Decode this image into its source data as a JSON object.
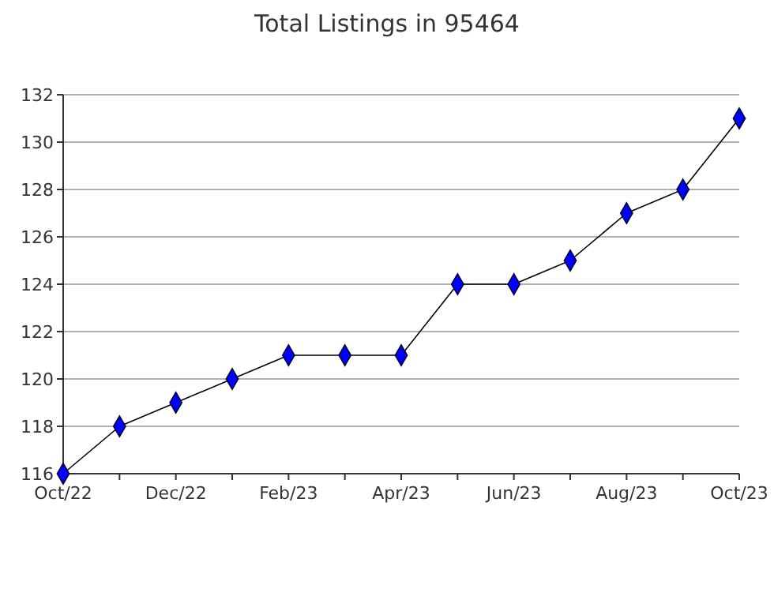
{
  "chart_data": {
    "type": "line",
    "title": "Total Listings in 95464",
    "categories": [
      "Oct/22",
      null,
      "Dec/22",
      null,
      "Feb/23",
      null,
      "Apr/23",
      null,
      "Jun/23",
      null,
      "Aug/23",
      null,
      "Oct/23"
    ],
    "series": [
      {
        "color": "#0000ff",
        "values": [
          116,
          118,
          119,
          120,
          121,
          121,
          121,
          124,
          124,
          125,
          127,
          128,
          131
        ]
      }
    ],
    "ylim": [
      116,
      132
    ],
    "yticks": [
      116,
      118,
      120,
      122,
      124,
      126,
      128,
      130,
      132
    ],
    "grid": "y",
    "marker": "diamond",
    "line_style": "solid"
  }
}
